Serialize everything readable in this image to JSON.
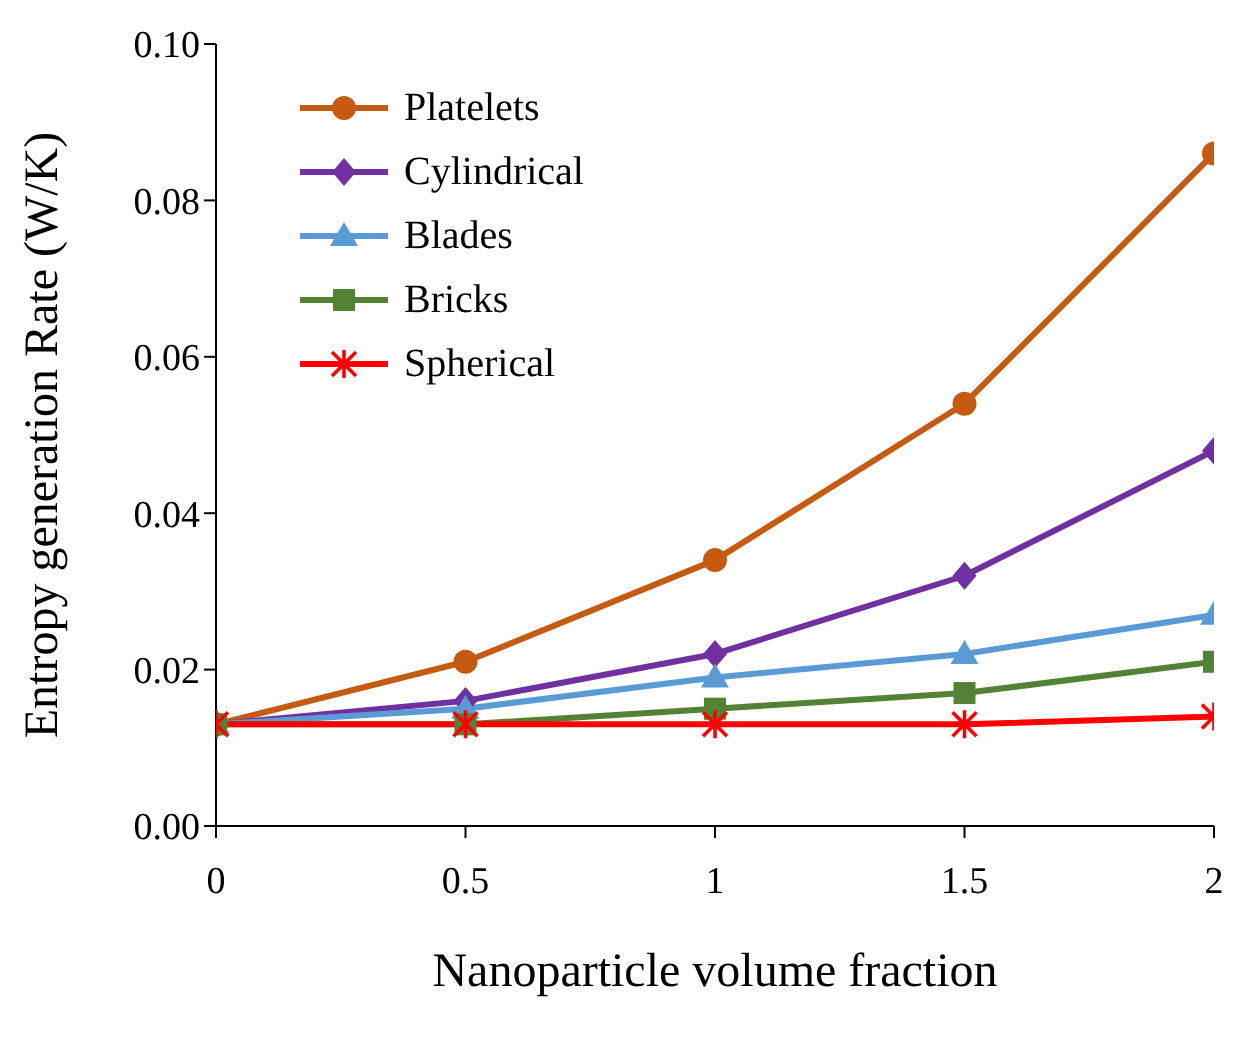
{
  "chart_data": {
    "type": "line",
    "xlabel": "Nanoparticle volume fraction",
    "ylabel": "Entropy generation Rate (W/K)",
    "x": [
      0,
      0.5,
      1,
      1.5,
      2
    ],
    "xlim": [
      0,
      2
    ],
    "xticks": [
      0,
      0.5,
      1,
      1.5,
      2
    ],
    "ylim": [
      0,
      0.1
    ],
    "yticks": [
      {
        "value": 0,
        "label": "0.00"
      },
      {
        "value": 0.02,
        "label": "0.02"
      },
      {
        "value": 0.04,
        "label": "0.04"
      },
      {
        "value": 0.06,
        "label": "0.06"
      },
      {
        "value": 0.08,
        "label": "0.08"
      },
      {
        "value": 0.1,
        "label": "0.10"
      }
    ],
    "grid": false,
    "legend": "top left",
    "line_style": "solid",
    "series": [
      {
        "name": "Platelets",
        "color": "#c55a11",
        "marker": "circle",
        "values": [
          0.013,
          0.021,
          0.034,
          0.054,
          0.086
        ]
      },
      {
        "name": "Cylindrical",
        "color": "#7030a0",
        "marker": "diamond",
        "values": [
          0.013,
          0.016,
          0.022,
          0.032,
          0.048
        ]
      },
      {
        "name": "Blades",
        "color": "#5b9bd5",
        "marker": "triangle",
        "values": [
          0.013,
          0.015,
          0.019,
          0.022,
          0.027
        ]
      },
      {
        "name": "Bricks",
        "color": "#548235",
        "marker": "square",
        "values": [
          0.013,
          0.013,
          0.015,
          0.017,
          0.021
        ]
      },
      {
        "name": "Spherical",
        "color": "#ff0000",
        "marker": "cross",
        "values": [
          0.013,
          0.013,
          0.013,
          0.013,
          0.014
        ]
      }
    ]
  }
}
